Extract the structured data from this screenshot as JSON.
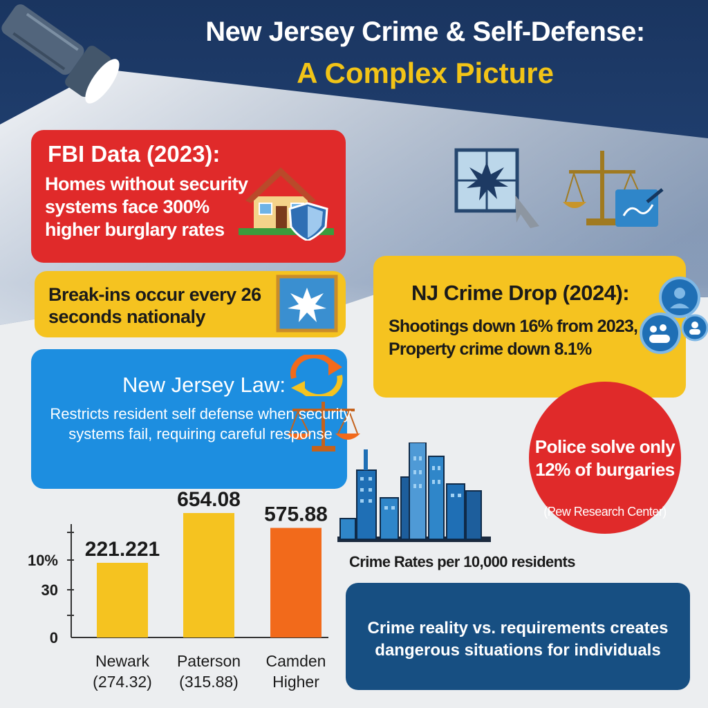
{
  "title": {
    "line1": "New Jersey Crime & Self-Defense:",
    "line2": "A Complex Picture"
  },
  "fbi_box": {
    "title": "FBI Data (2023):",
    "body": "Homes without security systems face 300% higher burglary rates"
  },
  "breakins_box": {
    "text": "Break-ins occur every 26 seconds nationaly"
  },
  "nj_law_box": {
    "title": "New Jersey Law:",
    "body": "Restricts resident self defense when security systems fail, requiring careful response"
  },
  "crime_drop_box": {
    "title": "NJ Crime Drop (2024):",
    "body": "Shootings down 16% from 2023, Property crime down 8.1%"
  },
  "police_circle": {
    "text": "Police solve only 12% of burgaries",
    "source": "(Pew Research Center)"
  },
  "reality_box": {
    "text": "Crime reality vs. requirements creates dangerous situations for individuals"
  },
  "colors": {
    "navy": "#1a3560",
    "red": "#e02a2a",
    "yellow": "#f5c320",
    "blue": "#1d8ee0",
    "dark_blue": "#174f82",
    "orange": "#f26a1b",
    "title_yellow": "#f2c417"
  },
  "icons": [
    "flashlight-icon",
    "house-shield-icon",
    "broken-window-icon",
    "scales-of-justice-icon",
    "community-people-icon",
    "city-skyline-icon",
    "refresh-arrows-icon"
  ],
  "chart_data": {
    "type": "bar",
    "title": "Crime Rates per 10,000 residents",
    "y_tick_labels": [
      "10%",
      "30",
      "0"
    ],
    "categories": [
      {
        "name": "Newark",
        "sub": "(274.32)"
      },
      {
        "name": "Paterson",
        "sub": "(315.88)"
      },
      {
        "name": "Camden",
        "sub": "Higher"
      }
    ],
    "values": [
      221.221,
      654.08,
      575.88
    ],
    "value_labels": [
      "221.221",
      "654.08",
      "575.88"
    ],
    "bar_colors": [
      "#f5c320",
      "#f5c320",
      "#f26a1b"
    ]
  }
}
